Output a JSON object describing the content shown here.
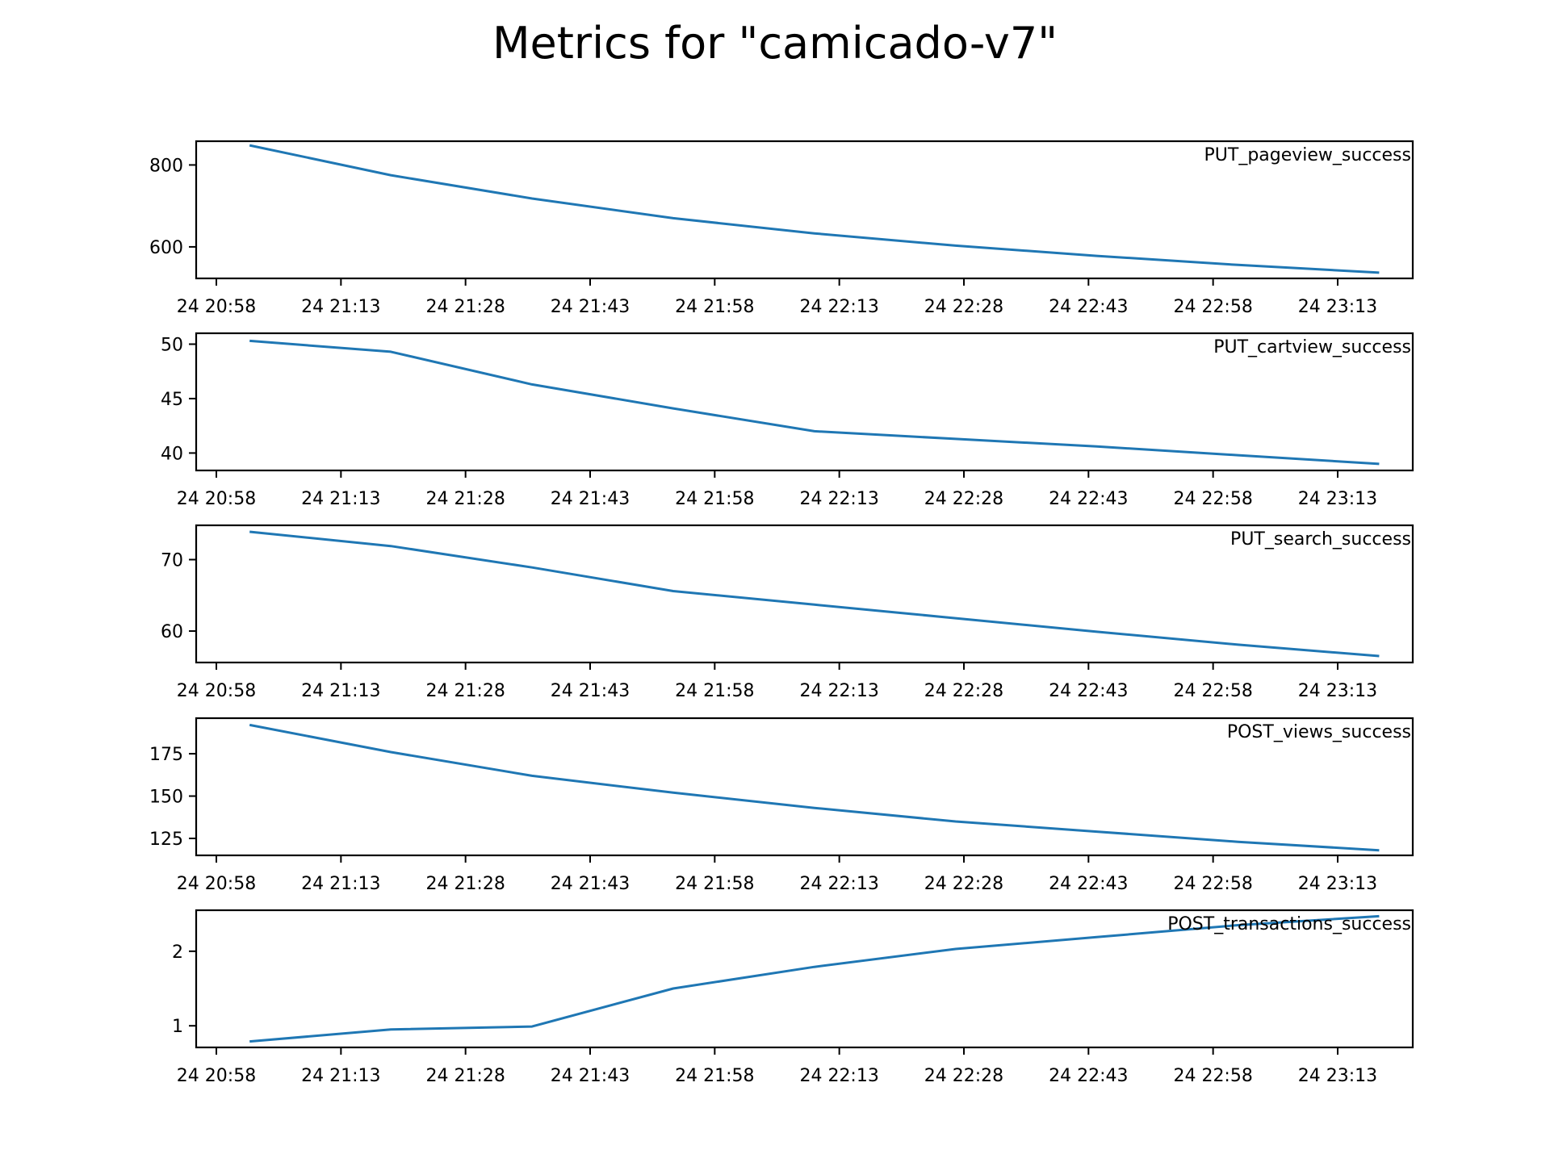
{
  "title": "Metrics for \"camicado-v7\"",
  "colors": {
    "line": "#1f77b4",
    "axes": "#000000",
    "background": "#ffffff"
  },
  "chart_data": [
    {
      "type": "line",
      "label": "PUT_pageview_success",
      "x_ticks": [
        "24 20:58",
        "24 21:13",
        "24 21:28",
        "24 21:43",
        "24 21:58",
        "24 22:13",
        "24 22:28",
        "24 22:43",
        "24 22:58",
        "24 23:13"
      ],
      "y_ticks": [
        600,
        800
      ],
      "ylim": [
        523,
        858
      ],
      "grid": false,
      "series": [
        {
          "x": [
            "24 21:02",
            "24 21:19",
            "24 21:36",
            "24 21:53",
            "24 22:10",
            "24 22:27",
            "24 22:44",
            "24 23:01",
            "24 23:18"
          ],
          "values": [
            848,
            775,
            718,
            670,
            633,
            603,
            578,
            556,
            537
          ]
        }
      ]
    },
    {
      "type": "line",
      "label": "PUT_cartview_success",
      "x_ticks": [
        "24 20:58",
        "24 21:13",
        "24 21:28",
        "24 21:43",
        "24 21:58",
        "24 22:13",
        "24 22:28",
        "24 22:43",
        "24 22:58",
        "24 23:13"
      ],
      "y_ticks": [
        40,
        45,
        50
      ],
      "ylim": [
        38.4,
        51.0
      ],
      "grid": false,
      "series": [
        {
          "x": [
            "24 21:02",
            "24 21:19",
            "24 21:36",
            "24 21:53",
            "24 22:10",
            "24 22:27",
            "24 22:44",
            "24 23:01",
            "24 23:18"
          ],
          "values": [
            50.3,
            49.3,
            46.3,
            44.1,
            42.0,
            41.3,
            40.6,
            39.8,
            39.0
          ]
        }
      ]
    },
    {
      "type": "line",
      "label": "PUT_search_success",
      "x_ticks": [
        "24 20:58",
        "24 21:13",
        "24 21:28",
        "24 21:43",
        "24 21:58",
        "24 22:13",
        "24 22:28",
        "24 22:43",
        "24 22:58",
        "24 23:13"
      ],
      "y_ticks": [
        60,
        70
      ],
      "ylim": [
        55.6,
        74.8
      ],
      "grid": false,
      "series": [
        {
          "x": [
            "24 21:02",
            "24 21:19",
            "24 21:36",
            "24 21:53",
            "24 22:10",
            "24 22:27",
            "24 22:44",
            "24 23:01",
            "24 23:18"
          ],
          "values": [
            73.9,
            71.9,
            68.9,
            65.6,
            63.7,
            61.8,
            59.9,
            58.1,
            56.5
          ]
        }
      ]
    },
    {
      "type": "line",
      "label": "POST_views_success",
      "x_ticks": [
        "24 20:58",
        "24 21:13",
        "24 21:28",
        "24 21:43",
        "24 21:58",
        "24 22:13",
        "24 22:28",
        "24 22:43",
        "24 22:58",
        "24 23:13"
      ],
      "y_ticks": [
        125,
        150,
        175
      ],
      "ylim": [
        115,
        196
      ],
      "grid": false,
      "series": [
        {
          "x": [
            "24 21:02",
            "24 21:19",
            "24 21:36",
            "24 21:53",
            "24 22:10",
            "24 22:27",
            "24 22:44",
            "24 23:01",
            "24 23:18"
          ],
          "values": [
            192,
            176,
            162,
            152,
            143,
            135,
            129,
            123,
            118
          ]
        }
      ]
    },
    {
      "type": "line",
      "label": "POST_transactions_success",
      "x_ticks": [
        "24 20:58",
        "24 21:13",
        "24 21:28",
        "24 21:43",
        "24 21:58",
        "24 22:13",
        "24 22:28",
        "24 22:43",
        "24 22:58",
        "24 23:13"
      ],
      "y_ticks": [
        1,
        2
      ],
      "ylim": [
        0.71,
        2.55
      ],
      "grid": false,
      "series": [
        {
          "x": [
            "24 21:02",
            "24 21:19",
            "24 21:36",
            "24 21:53",
            "24 22:10",
            "24 22:27",
            "24 22:44",
            "24 23:01",
            "24 23:18"
          ],
          "values": [
            0.79,
            0.95,
            0.99,
            1.5,
            1.79,
            2.03,
            2.19,
            2.35,
            2.47
          ]
        }
      ]
    }
  ]
}
